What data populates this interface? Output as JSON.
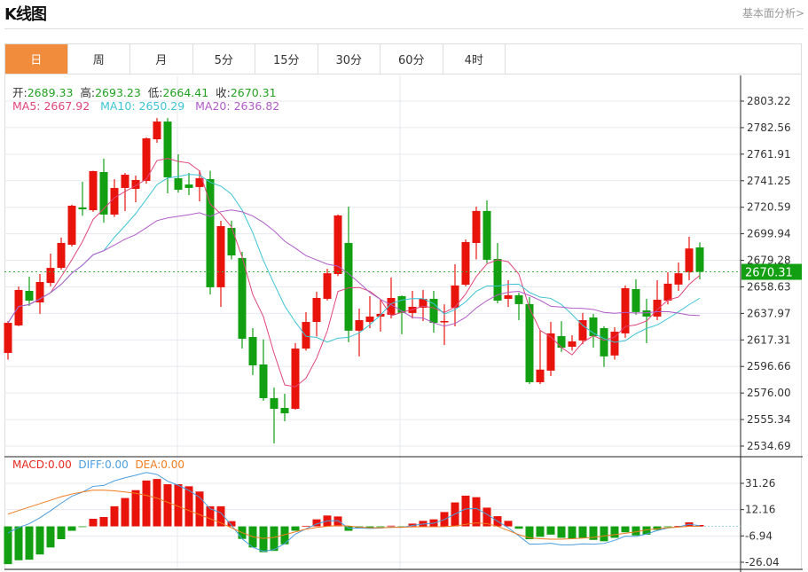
{
  "header": {
    "title": "K线图",
    "link": "基本面分析>"
  },
  "tabs": [
    {
      "label": "日",
      "active": true
    },
    {
      "label": "周"
    },
    {
      "label": "月"
    },
    {
      "label": "5分"
    },
    {
      "label": "15分"
    },
    {
      "label": "30分"
    },
    {
      "label": "60分"
    },
    {
      "label": "4时"
    }
  ],
  "ohlc_legend": {
    "open_label": "开:",
    "open": "2689.33",
    "high_label": "高:",
    "high": "2693.23",
    "low_label": "低:",
    "low": "2664.41",
    "close_label": "收:",
    "close": "2670.31"
  },
  "ma_legend": {
    "ma5": "MA5: 2667.92",
    "ma10": "MA10: 2650.29",
    "ma20": "MA20: 2636.82"
  },
  "macd_legend": {
    "macd": "MACD:0.00",
    "diff": "DIFF:0.00",
    "dea": "DEA:0.00"
  },
  "colors": {
    "up": "#e8140c",
    "down": "#12a012",
    "ma5": "#e0457b",
    "ma10": "#3cc4d4",
    "ma20": "#b05cc6",
    "diff": "#4a9ee0",
    "dea": "#f07c1e",
    "accent": "#f08c3c"
  },
  "chart_data": [
    {
      "type": "candlestick",
      "title": "K线图",
      "period": "日",
      "ylim": [
        2534.69,
        2803.22
      ],
      "y_ticks": [
        "2803.22",
        "2782.56",
        "2761.91",
        "2741.25",
        "2720.59",
        "2699.94",
        "2679.28",
        "2658.63",
        "2637.97",
        "2617.31",
        "2596.66",
        "2576.00",
        "2555.34",
        "2534.69"
      ],
      "last_price": "2670.31",
      "ma_periods": [
        5,
        10,
        20
      ],
      "candles": [
        [
          2607.2,
          2632,
          2602,
          2630.6
        ],
        [
          2628.6,
          2658.9,
          2628,
          2656.2
        ],
        [
          2655.5,
          2666.5,
          2643.8,
          2647.9
        ],
        [
          2646.5,
          2668.6,
          2637.6,
          2662.4
        ],
        [
          2661.7,
          2684.5,
          2659,
          2673.4
        ],
        [
          2673.4,
          2697,
          2672,
          2692.8
        ],
        [
          2691.4,
          2722.5,
          2690,
          2721.8
        ],
        [
          2720.4,
          2740.4,
          2714,
          2719
        ],
        [
          2718.3,
          2749,
          2717,
          2748.7
        ],
        [
          2748,
          2758.4,
          2708.6,
          2714.9
        ],
        [
          2714.9,
          2742.4,
          2713,
          2735.6
        ],
        [
          2735.6,
          2747.3,
          2717.6,
          2745.9
        ],
        [
          2734.9,
          2745.2,
          2724.5,
          2741.8
        ],
        [
          2741.1,
          2775,
          2739,
          2774.2
        ],
        [
          2773.5,
          2790,
          2770.8,
          2787.3
        ],
        [
          2787.3,
          2790,
          2731.4,
          2743.9
        ],
        [
          2743.2,
          2761.8,
          2732,
          2734.2
        ],
        [
          2738.3,
          2747.3,
          2730,
          2735.6
        ],
        [
          2736.3,
          2749.4,
          2725.2,
          2743.2
        ],
        [
          2742.5,
          2749,
          2652.7,
          2658.3
        ],
        [
          2658.3,
          2710,
          2643,
          2705.9
        ],
        [
          2704.5,
          2710,
          2680,
          2683.1
        ],
        [
          2681.1,
          2685.9,
          2610.6,
          2618.2
        ],
        [
          2619.6,
          2626.5,
          2590,
          2597.5
        ],
        [
          2598.2,
          2617.7,
          2570,
          2572
        ],
        [
          2572,
          2580.2,
          2536.8,
          2563.7
        ],
        [
          2564.4,
          2575.4,
          2554,
          2560.2
        ],
        [
          2563.7,
          2614.8,
          2563,
          2610.6
        ],
        [
          2610.6,
          2638.9,
          2609,
          2631.3
        ],
        [
          2631.3,
          2654.8,
          2620,
          2650
        ],
        [
          2649.3,
          2672.7,
          2648,
          2669.2
        ],
        [
          2668.6,
          2714.9,
          2667,
          2714.2
        ],
        [
          2692.8,
          2721.1,
          2615.5,
          2624.5
        ],
        [
          2624.5,
          2641.7,
          2604.5,
          2632.7
        ],
        [
          2631.3,
          2651.4,
          2626.5,
          2635.5
        ],
        [
          2635.5,
          2648.6,
          2623.8,
          2637.6
        ],
        [
          2636.9,
          2665.9,
          2634,
          2650
        ],
        [
          2651.4,
          2652,
          2621.7,
          2638.3
        ],
        [
          2638.3,
          2655.5,
          2634,
          2643.1
        ],
        [
          2642.4,
          2656.2,
          2632,
          2649.3
        ],
        [
          2649.3,
          2655.5,
          2623,
          2630.6
        ],
        [
          2631.3,
          2645,
          2613.4,
          2632
        ],
        [
          2642.4,
          2676.2,
          2627.9,
          2659.7
        ],
        [
          2660.3,
          2695.5,
          2659,
          2693.5
        ],
        [
          2692.8,
          2721.1,
          2680,
          2717.7
        ],
        [
          2717.7,
          2725.9,
          2677,
          2679.7
        ],
        [
          2680.4,
          2692.8,
          2645.8,
          2647.9
        ],
        [
          2649.3,
          2663.8,
          2643,
          2652.1
        ],
        [
          2652.1,
          2654,
          2632.7,
          2645.2
        ],
        [
          2645.2,
          2650.7,
          2583,
          2584.4
        ],
        [
          2584.4,
          2625.1,
          2583,
          2594.2
        ],
        [
          2593.4,
          2631.3,
          2589.2,
          2622.4
        ],
        [
          2620.3,
          2631.9,
          2608,
          2611.3
        ],
        [
          2612,
          2621,
          2609,
          2616.2
        ],
        [
          2616.9,
          2638.3,
          2614,
          2632.7
        ],
        [
          2634.8,
          2637.6,
          2611.3,
          2620.3
        ],
        [
          2626.5,
          2628,
          2596.3,
          2604.5
        ],
        [
          2605.2,
          2627.2,
          2602,
          2623.7
        ],
        [
          2622.4,
          2659.7,
          2619,
          2657.6
        ],
        [
          2656.9,
          2664.5,
          2636.9,
          2639
        ],
        [
          2640.3,
          2649.3,
          2614.8,
          2635.5
        ],
        [
          2635.5,
          2663.8,
          2632.7,
          2648.6
        ],
        [
          2647.9,
          2670,
          2645,
          2661.1
        ],
        [
          2660.4,
          2677.6,
          2655.5,
          2669.2
        ],
        [
          2669.9,
          2697.6,
          2663.8,
          2688.5
        ],
        [
          2689.33,
          2693.23,
          2664.41,
          2670.31
        ]
      ]
    },
    {
      "type": "bar+line",
      "title": "MACD",
      "ylim": [
        -26.04,
        31.26
      ],
      "y_ticks": [
        "31.26",
        "12.16",
        "-6.94",
        "-26.04"
      ],
      "macd_hist": [
        -27.4,
        -24.6,
        -24.2,
        -20.4,
        -15.3,
        -9.3,
        -3.2,
        -0.3,
        5.5,
        6.8,
        14.6,
        20.6,
        26.3,
        33.3,
        34.4,
        30.6,
        30.6,
        29.1,
        25.3,
        14.6,
        14.6,
        3.8,
        -9.1,
        -15.3,
        -18.7,
        -17.8,
        -13,
        -3.2,
        0.4,
        5.1,
        7.9,
        7.2,
        -3.2,
        -1.3,
        -1,
        -0.5,
        0.5,
        -0.3,
        2,
        4,
        5.1,
        10.4,
        17.4,
        22.3,
        21.2,
        13.6,
        7.4,
        4,
        -1.7,
        -9.3,
        -7.6,
        -6,
        -8.3,
        -8.8,
        -8.3,
        -9.8,
        -10.8,
        -8.3,
        -4.3,
        -6.6,
        -6,
        -2.6,
        -0.3,
        0.3,
        2.9,
        1
      ],
      "dea": [
        8.9,
        11.5,
        14,
        16.5,
        19,
        21.5,
        23.5,
        25,
        26.3,
        26.3,
        25.8,
        25,
        24,
        22.5,
        20.5,
        17.5,
        14.5,
        11.5,
        8.5,
        5.5,
        2.5,
        -1,
        -4.5,
        -7.5,
        -8.7,
        -8,
        -6,
        -4,
        -2,
        -0.8,
        0,
        0.5,
        0.3,
        -0.5,
        -1,
        -1,
        -0.8,
        -0.6,
        -0.4,
        -0.3,
        -0.3,
        -0.2,
        0.3,
        1.5,
        2.5,
        2,
        0,
        -3,
        -6,
        -8.3,
        -9,
        -9.3,
        -9.3,
        -9,
        -8.5,
        -8,
        -7,
        -6,
        -5,
        -4,
        -2.5,
        -1.7,
        -1,
        -0.5,
        0,
        0
      ]
    }
  ]
}
